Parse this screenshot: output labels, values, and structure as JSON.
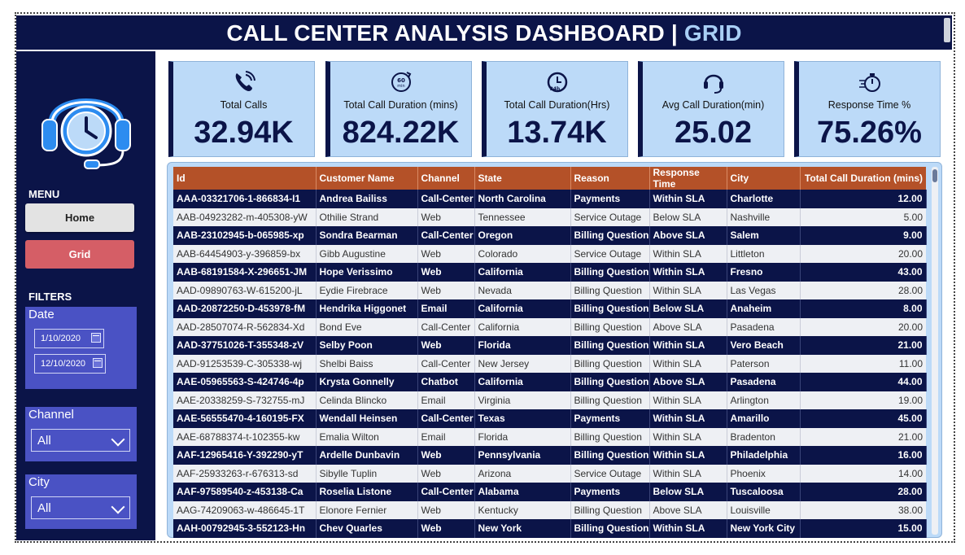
{
  "header": {
    "title_main": "CALL CENTER ANALYSIS DASHBOARD |",
    "title_accent": "GRID"
  },
  "sidebar": {
    "logo_icon": "headset-clock-icon",
    "menu_heading": "MENU",
    "home_label": "Home",
    "grid_label": "Grid",
    "filters_heading": "FILTERS",
    "date": {
      "label": "Date",
      "start": "1/10/2020",
      "end": "12/10/2020"
    },
    "channel": {
      "label": "Channel",
      "value": "All"
    },
    "city": {
      "label": "City",
      "value": "All"
    }
  },
  "kpis": [
    {
      "icon": "phone-icon",
      "label": "Total Calls",
      "value": "32.94K"
    },
    {
      "icon": "timer-60-min-icon",
      "label": "Total Call Duration (mins)",
      "value": "824.22K"
    },
    {
      "icon": "clock-24h-icon",
      "label": "Total Call Duration(Hrs)",
      "value": "13.74K"
    },
    {
      "icon": "headset-icon",
      "label": "Avg Call Duration(min)",
      "value": "25.02"
    },
    {
      "icon": "stopwatch-icon",
      "label": "Response Time %",
      "value": "75.26%"
    }
  ],
  "table": {
    "columns": [
      "Id",
      "Customer Name",
      "Channel",
      "State",
      "Reason",
      "Response Time",
      "City",
      "Total Call Duration (mins)"
    ],
    "rows": [
      [
        "AAA-03321706-1-866834-I1",
        "Andrea Bailiss",
        "Call-Center",
        "North Carolina",
        "Payments",
        "Within SLA",
        "Charlotte",
        "12.00"
      ],
      [
        "AAB-04923282-m-405308-yW",
        "Othilie Strand",
        "Web",
        "Tennessee",
        "Service Outage",
        "Below SLA",
        "Nashville",
        "5.00"
      ],
      [
        "AAB-23102945-b-065985-xp",
        "Sondra Bearman",
        "Call-Center",
        "Oregon",
        "Billing Question",
        "Above SLA",
        "Salem",
        "9.00"
      ],
      [
        "AAB-64454903-y-396859-bx",
        "Gibb Augustine",
        "Web",
        "Colorado",
        "Service Outage",
        "Within SLA",
        "Littleton",
        "20.00"
      ],
      [
        "AAB-68191584-X-296651-JM",
        "Hope Verissimo",
        "Web",
        "California",
        "Billing Question",
        "Within SLA",
        "Fresno",
        "43.00"
      ],
      [
        "AAD-09890763-W-615200-jL",
        "Eydie Firebrace",
        "Web",
        "Nevada",
        "Billing Question",
        "Within SLA",
        "Las Vegas",
        "28.00"
      ],
      [
        "AAD-20872250-D-453978-fM",
        "Hendrika Higgonet",
        "Email",
        "California",
        "Billing Question",
        "Below SLA",
        "Anaheim",
        "8.00"
      ],
      [
        "AAD-28507074-R-562834-Xd",
        "Bond Eve",
        "Call-Center",
        "California",
        "Billing Question",
        "Above SLA",
        "Pasadena",
        "20.00"
      ],
      [
        "AAD-37751026-T-355348-zV",
        "Selby Poon",
        "Web",
        "Florida",
        "Billing Question",
        "Within SLA",
        "Vero Beach",
        "21.00"
      ],
      [
        "AAD-91253539-C-305338-wj",
        "Shelbi Baiss",
        "Call-Center",
        "New Jersey",
        "Billing Question",
        "Within SLA",
        "Paterson",
        "11.00"
      ],
      [
        "AAE-05965563-S-424746-4p",
        "Krysta Gonnelly",
        "Chatbot",
        "California",
        "Billing Question",
        "Above SLA",
        "Pasadena",
        "44.00"
      ],
      [
        "AAE-20338259-S-732755-mJ",
        "Celinda Blincko",
        "Email",
        "Virginia",
        "Billing Question",
        "Within SLA",
        "Arlington",
        "19.00"
      ],
      [
        "AAE-56555470-4-160195-FX",
        "Wendall Heinsen",
        "Call-Center",
        "Texas",
        "Payments",
        "Within SLA",
        "Amarillo",
        "45.00"
      ],
      [
        "AAE-68788374-t-102355-kw",
        "Emalia Wilton",
        "Email",
        "Florida",
        "Billing Question",
        "Within SLA",
        "Bradenton",
        "21.00"
      ],
      [
        "AAF-12965416-Y-392290-yT",
        "Ardelle Dunbavin",
        "Web",
        "Pennsylvania",
        "Billing Question",
        "Within SLA",
        "Philadelphia",
        "16.00"
      ],
      [
        "AAF-25933263-r-676313-sd",
        "Sibylle Tuplin",
        "Web",
        "Arizona",
        "Service Outage",
        "Within SLA",
        "Phoenix",
        "14.00"
      ],
      [
        "AAF-97589540-z-453138-Ca",
        "Roselia Listone",
        "Call-Center",
        "Alabama",
        "Payments",
        "Below SLA",
        "Tuscaloosa",
        "28.00"
      ],
      [
        "AAG-74209063-w-486645-1T",
        "Elonore Fernier",
        "Web",
        "Kentucky",
        "Billing Question",
        "Above SLA",
        "Louisville",
        "38.00"
      ],
      [
        "AAH-00792945-3-552123-Hn",
        "Chev Quarles",
        "Web",
        "New York",
        "Billing Question",
        "Within SLA",
        "New York City",
        "15.00"
      ]
    ]
  }
}
